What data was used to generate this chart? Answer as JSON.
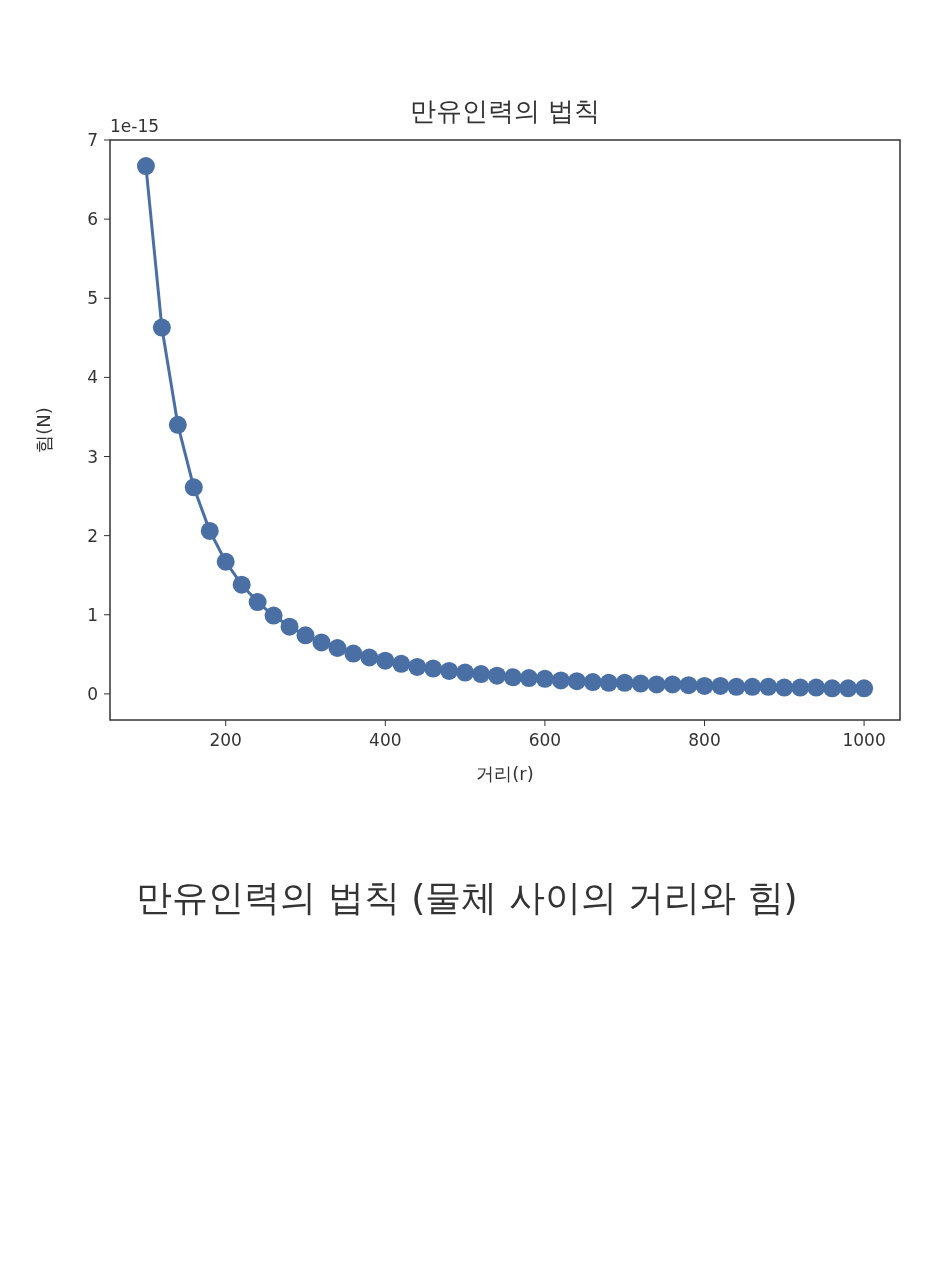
{
  "chart_data": {
    "type": "line",
    "title": "만유인력의 법칙",
    "xlabel": "거리(r)",
    "ylabel": "힘(N)",
    "annotations": [
      "1e-15",
      "만유인력의 법칙 (물체 사이의 거리와 힘)"
    ],
    "x": [
      100,
      120,
      140,
      160,
      180,
      200,
      220,
      240,
      260,
      280,
      300,
      320,
      340,
      360,
      380,
      400,
      420,
      440,
      460,
      480,
      500,
      520,
      540,
      560,
      580,
      600,
      620,
      640,
      660,
      680,
      700,
      720,
      740,
      760,
      780,
      800,
      820,
      840,
      860,
      880,
      900,
      920,
      940,
      960,
      980,
      1000
    ],
    "series": [
      {
        "color": "#4a6fa5",
        "values": [
          6.67,
          4.63,
          3.4,
          2.61,
          2.06,
          1.67,
          1.38,
          1.16,
          0.99,
          0.85,
          0.74,
          0.65,
          0.58,
          0.51,
          0.46,
          0.42,
          0.38,
          0.34,
          0.32,
          0.29,
          0.27,
          0.25,
          0.23,
          0.21,
          0.2,
          0.19,
          0.17,
          0.16,
          0.15,
          0.14,
          0.14,
          0.13,
          0.12,
          0.12,
          0.11,
          0.1,
          0.1,
          0.09,
          0.09,
          0.09,
          0.08,
          0.08,
          0.08,
          0.07,
          0.07,
          0.07
        ]
      }
    ],
    "xlim": [
      55,
      1045
    ],
    "ylim": [
      -0.33,
      7
    ],
    "xticks": [
      200,
      400,
      600,
      800,
      1000
    ],
    "yticks": [
      0,
      1,
      2,
      3,
      4,
      5,
      6,
      7
    ],
    "marker": "circle",
    "line_style": "solid",
    "grid": false
  }
}
